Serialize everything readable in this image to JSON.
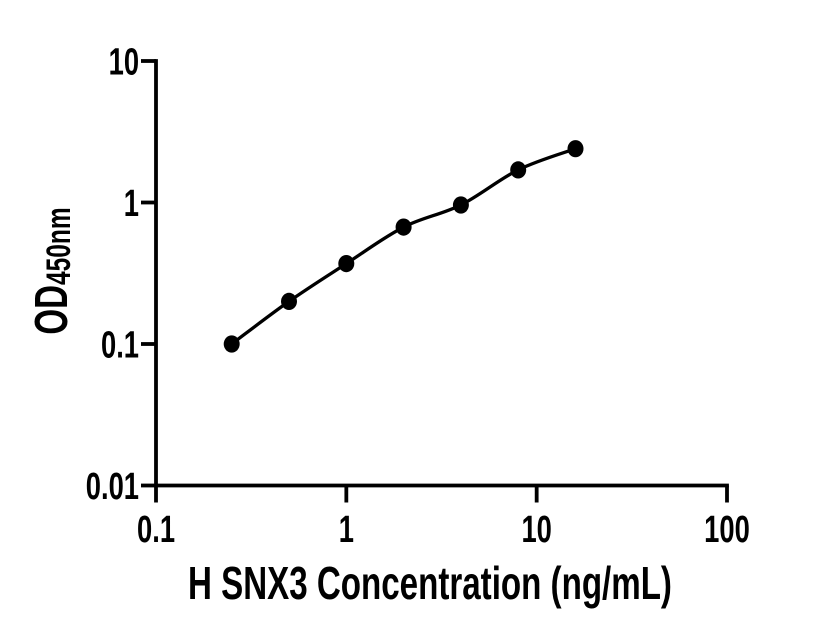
{
  "figure": {
    "background": "#ffffff",
    "ink_color": "#000000"
  },
  "chart_data": {
    "type": "line",
    "subtype": "elisa-standard-curve-with-markers",
    "title": "",
    "xlabel": "H SNX3 Concentration (ng/mL)",
    "ylabel": "OD450nm",
    "ylabel_main": "OD",
    "ylabel_sub": "450nm",
    "x_scale": "log10",
    "y_scale": "log10",
    "xlim": [
      0.1,
      100
    ],
    "ylim": [
      0.01,
      10
    ],
    "x_ticks": [
      0.1,
      1,
      10,
      100
    ],
    "x_tick_labels": [
      "0.1",
      "1",
      "10",
      "100"
    ],
    "y_ticks": [
      0.01,
      0.1,
      1,
      10
    ],
    "y_tick_labels": [
      "0.01",
      "0.1",
      "1",
      "10"
    ],
    "grid": false,
    "legend": false,
    "color": "#000000",
    "marker": "filled-circle",
    "series": [
      {
        "x": [
          0.25,
          0.5,
          1,
          2,
          4,
          8,
          16
        ],
        "y": [
          0.1,
          0.2,
          0.37,
          0.67,
          0.96,
          1.7,
          2.4
        ]
      }
    ]
  }
}
